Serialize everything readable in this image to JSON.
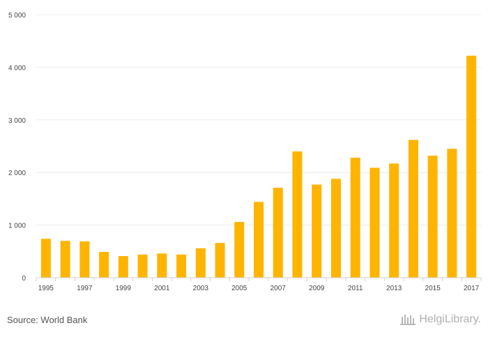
{
  "chart_data": {
    "type": "bar",
    "title": "",
    "xlabel": "",
    "ylabel": "",
    "categories": [
      "1995",
      "1996",
      "1997",
      "1998",
      "1999",
      "2000",
      "2001",
      "2002",
      "2003",
      "2004",
      "2005",
      "2006",
      "2007",
      "2008",
      "2009",
      "2010",
      "2011",
      "2012",
      "2013",
      "2014",
      "2015",
      "2016",
      "2017"
    ],
    "x_tick_labels": [
      "1995",
      "1997",
      "1999",
      "2001",
      "2003",
      "2005",
      "2007",
      "2009",
      "2011",
      "2013",
      "2015",
      "2017"
    ],
    "values": [
      740,
      700,
      690,
      490,
      410,
      440,
      460,
      440,
      560,
      660,
      1060,
      1440,
      1710,
      2400,
      1770,
      1880,
      2280,
      2090,
      2170,
      2620,
      2320,
      2450,
      4220
    ],
    "ylim": [
      0,
      5000
    ],
    "y_ticks": [
      0,
      1000,
      2000,
      3000,
      4000,
      5000
    ],
    "y_tick_labels": [
      "0",
      "1 000",
      "2 000",
      "3 000",
      "4 000",
      "5 000"
    ],
    "bar_color": "#FFB400",
    "grid": true
  },
  "footer": {
    "source": "Source: World Bank",
    "logo_text": "HelgiLibrary."
  }
}
